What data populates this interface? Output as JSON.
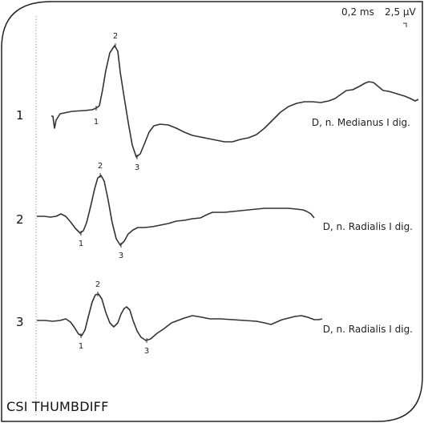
{
  "header": {
    "time_scale": "0,2 ms",
    "amp_scale": "2,5 µV"
  },
  "footer": {
    "title": "CSI THUMBDIFF"
  },
  "chart_data": {
    "type": "line",
    "traces": [
      {
        "index": "1",
        "label": "D, n. Medianus I dig.",
        "markers": [
          "1",
          "2",
          "3"
        ],
        "points": [
          [
            64,
            145
          ],
          [
            66,
            145
          ],
          [
            68,
            160
          ],
          [
            70,
            150
          ],
          [
            75,
            142
          ],
          [
            90,
            139
          ],
          [
            105,
            138
          ],
          [
            115,
            137
          ],
          [
            120,
            135
          ],
          [
            124,
            132
          ],
          [
            128,
            112
          ],
          [
            132,
            88
          ],
          [
            137,
            66
          ],
          [
            143,
            57
          ],
          [
            147,
            64
          ],
          [
            150,
            90
          ],
          [
            155,
            122
          ],
          [
            160,
            153
          ],
          [
            165,
            181
          ],
          [
            170,
            196
          ],
          [
            175,
            192
          ],
          [
            180,
            180
          ],
          [
            186,
            165
          ],
          [
            192,
            157
          ],
          [
            200,
            155
          ],
          [
            210,
            156
          ],
          [
            220,
            160
          ],
          [
            230,
            165
          ],
          [
            240,
            169
          ],
          [
            250,
            171
          ],
          [
            260,
            173
          ],
          [
            270,
            175
          ],
          [
            280,
            177
          ],
          [
            290,
            177
          ],
          [
            300,
            174
          ],
          [
            310,
            172
          ],
          [
            320,
            168
          ],
          [
            330,
            160
          ],
          [
            340,
            150
          ],
          [
            350,
            140
          ],
          [
            360,
            133
          ],
          [
            370,
            129
          ],
          [
            380,
            127
          ],
          [
            390,
            127
          ],
          [
            400,
            128
          ],
          [
            410,
            126
          ],
          [
            418,
            123
          ],
          [
            425,
            118
          ],
          [
            432,
            113
          ],
          [
            440,
            112
          ],
          [
            448,
            108
          ],
          [
            455,
            104
          ],
          [
            460,
            102
          ],
          [
            466,
            103
          ],
          [
            472,
            108
          ],
          [
            478,
            113
          ],
          [
            485,
            114
          ],
          [
            495,
            117
          ],
          [
            505,
            120
          ],
          [
            512,
            123
          ],
          [
            518,
            126
          ],
          [
            522,
            124
          ]
        ]
      },
      {
        "index": "2",
        "label": "D, n. Radialis I dig.",
        "markers": [
          "1",
          "2",
          "3"
        ],
        "points": [
          [
            46,
            270
          ],
          [
            55,
            270
          ],
          [
            63,
            271
          ],
          [
            70,
            270
          ],
          [
            76,
            267
          ],
          [
            82,
            270
          ],
          [
            88,
            277
          ],
          [
            94,
            285
          ],
          [
            100,
            291
          ],
          [
            104,
            288
          ],
          [
            108,
            278
          ],
          [
            113,
            258
          ],
          [
            118,
            236
          ],
          [
            122,
            222
          ],
          [
            126,
            219
          ],
          [
            130,
            226
          ],
          [
            135,
            250
          ],
          [
            140,
            278
          ],
          [
            145,
            298
          ],
          [
            150,
            306
          ],
          [
            155,
            301
          ],
          [
            160,
            292
          ],
          [
            166,
            287
          ],
          [
            172,
            284
          ],
          [
            180,
            284
          ],
          [
            190,
            283
          ],
          [
            200,
            281
          ],
          [
            210,
            279
          ],
          [
            220,
            276
          ],
          [
            230,
            275
          ],
          [
            240,
            273
          ],
          [
            250,
            272
          ],
          [
            258,
            268
          ],
          [
            265,
            265
          ],
          [
            272,
            265
          ],
          [
            280,
            265
          ],
          [
            290,
            264
          ],
          [
            300,
            263
          ],
          [
            310,
            262
          ],
          [
            320,
            261
          ],
          [
            330,
            260
          ],
          [
            340,
            260
          ],
          [
            350,
            260
          ],
          [
            360,
            260
          ],
          [
            370,
            261
          ],
          [
            378,
            262
          ],
          [
            383,
            264
          ],
          [
            388,
            267
          ],
          [
            392,
            272
          ]
        ]
      },
      {
        "index": "3",
        "label": "D, n. Radialis I dig.",
        "markers": [
          "1",
          "2",
          "3"
        ],
        "points": [
          [
            46,
            400
          ],
          [
            56,
            400
          ],
          [
            66,
            401
          ],
          [
            75,
            400
          ],
          [
            82,
            398
          ],
          [
            88,
            402
          ],
          [
            93,
            409
          ],
          [
            98,
            417
          ],
          [
            102,
            419
          ],
          [
            106,
            412
          ],
          [
            110,
            396
          ],
          [
            115,
            377
          ],
          [
            119,
            368
          ],
          [
            123,
            367
          ],
          [
            127,
            373
          ],
          [
            132,
            390
          ],
          [
            137,
            403
          ],
          [
            142,
            408
          ],
          [
            147,
            403
          ],
          [
            151,
            392
          ],
          [
            155,
            385
          ],
          [
            158,
            383
          ],
          [
            162,
            387
          ],
          [
            166,
            400
          ],
          [
            171,
            413
          ],
          [
            176,
            421
          ],
          [
            182,
            425
          ],
          [
            188,
            423
          ],
          [
            196,
            416
          ],
          [
            205,
            410
          ],
          [
            214,
            403
          ],
          [
            222,
            400
          ],
          [
            230,
            397
          ],
          [
            240,
            394
          ],
          [
            252,
            396
          ],
          [
            262,
            398
          ],
          [
            275,
            398
          ],
          [
            290,
            399
          ],
          [
            305,
            400
          ],
          [
            320,
            401
          ],
          [
            330,
            403
          ],
          [
            338,
            405
          ],
          [
            345,
            402
          ],
          [
            352,
            399
          ],
          [
            360,
            397
          ],
          [
            368,
            395
          ],
          [
            376,
            394
          ],
          [
            384,
            396
          ],
          [
            392,
            399
          ],
          [
            398,
            399
          ],
          [
            402,
            398
          ]
        ]
      }
    ]
  }
}
